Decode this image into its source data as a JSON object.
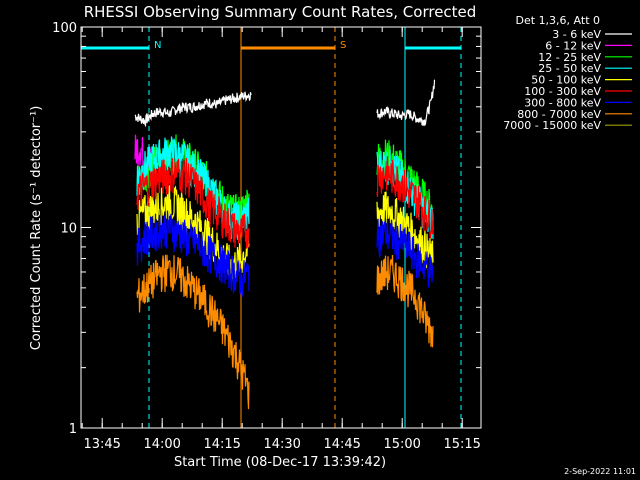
{
  "chart_data": {
    "type": "line",
    "title": "RHESSI Observing Summary Count Rates, Corrected",
    "xlabel": "Start Time (08-Dec-17 13:39:42)",
    "ylabel": "Corrected Count Rate (s⁻¹ detector⁻¹)",
    "yscale": "log",
    "ylim": [
      1,
      100
    ],
    "xlim_minutes": [
      0,
      100
    ],
    "xticks": [
      "13:45",
      "14:00",
      "14:15",
      "14:30",
      "14:45",
      "15:00",
      "15:15"
    ],
    "yticks": [
      "1",
      "10",
      "100"
    ],
    "legend_title": "Det 1,3,6, Att 0",
    "legend_position": "right",
    "timestamp": "2-Sep-2022 11:01",
    "series": [
      {
        "name": "3 - 6 keV",
        "color": "#ffffff",
        "segments": [
          {
            "x": [
              13.5,
              16.0,
              18.0,
              20.0,
              22.0,
              24.0,
              26.0,
              28.0,
              30.0,
              32.0,
              34.0,
              36.0,
              38.0,
              40.0,
              42.5
            ],
            "y": [
              36,
              34,
              37,
              38,
              37,
              39,
              40,
              40,
              41,
              42,
              41,
              43,
              44,
              45,
              46
            ]
          },
          {
            "x": [
              74.0,
              76.0,
              78.0,
              80.0,
              82.0,
              84.0,
              86.0,
              87.5,
              88.5
            ],
            "y": [
              37,
              38,
              37,
              36,
              37,
              35,
              34,
              42,
              55
            ]
          }
        ]
      },
      {
        "name": "6 - 12 keV",
        "color": "#ff00ff",
        "segments": [
          {
            "x": [
              13.5,
              14.5,
              16.0,
              18.0
            ],
            "y": [
              24,
              26,
              22,
              21
            ]
          }
        ]
      },
      {
        "name": "12 - 25 keV",
        "color": "#00ff00",
        "segments": [
          {
            "x": [
              14.0,
              16.0,
              18.0,
              20.0,
              22.0,
              24.0,
              26.0,
              28.0,
              30.0,
              32.0,
              34.0,
              36.0,
              38.0,
              40.0,
              42.0
            ],
            "y": [
              17,
              19,
              21,
              22,
              23,
              24,
              23,
              21,
              19,
              17,
              15,
              13,
              12,
              12,
              14
            ]
          },
          {
            "x": [
              74.0,
              76.0,
              78.0,
              80.0,
              82.0,
              84.0,
              86.0,
              88.0
            ],
            "y": [
              22,
              23,
              22,
              20,
              18,
              16,
              14,
              12
            ]
          }
        ]
      },
      {
        "name": "25 - 50 keV",
        "color": "#00ffff",
        "segments": [
          {
            "x": [
              14.0,
              16.0,
              18.0,
              20.0,
              22.0,
              24.0,
              26.0,
              28.0,
              30.0,
              32.0,
              34.0,
              36.0,
              38.0,
              40.0,
              42.0
            ],
            "y": [
              18,
              20,
              22,
              23,
              24,
              23,
              22,
              20,
              18,
              16,
              14,
              12,
              11,
              11,
              12
            ]
          },
          {
            "x": [
              74.0,
              76.0,
              78.0,
              80.0,
              82.0,
              84.0,
              86.0,
              88.0
            ],
            "y": [
              20,
              21,
              20,
              18,
              16,
              14,
              12,
              11
            ]
          }
        ]
      },
      {
        "name": "50 - 100 keV",
        "color": "#ffff00",
        "segments": [
          {
            "x": [
              14.0,
              16.0,
              18.0,
              20.0,
              22.0,
              24.0,
              26.0,
              28.0,
              30.0,
              32.0,
              34.0,
              36.0,
              38.0,
              40.0,
              42.0
            ],
            "y": [
              11,
              12,
              12.5,
              13,
              13.5,
              13,
              12,
              11,
              10,
              9,
              8,
              7,
              6.5,
              7,
              8
            ]
          },
          {
            "x": [
              74.0,
              76.0,
              78.0,
              80.0,
              82.0,
              84.0,
              86.0,
              88.0
            ],
            "y": [
              12,
              12.5,
              12,
              11,
              10,
              9,
              8,
              7
            ]
          }
        ]
      },
      {
        "name": "100 - 300 keV",
        "color": "#ff0000",
        "segments": [
          {
            "x": [
              14.0,
              16.0,
              18.0,
              20.0,
              22.0,
              24.0,
              26.0,
              28.0,
              30.0,
              32.0,
              34.0,
              36.0,
              38.0,
              40.0,
              42.0
            ],
            "y": [
              15,
              16,
              17,
              18,
              18.5,
              19,
              18.5,
              17,
              15,
              13,
              12,
              11,
              10,
              9.5,
              10
            ]
          },
          {
            "x": [
              74.0,
              76.0,
              78.0,
              80.0,
              82.0,
              84.0,
              86.0,
              88.0
            ],
            "y": [
              18,
              19,
              18,
              17,
              15,
              14,
              12,
              11
            ]
          }
        ]
      },
      {
        "name": "300 - 800 keV",
        "color": "#0000ff",
        "segments": [
          {
            "x": [
              14.0,
              16.0,
              18.0,
              20.0,
              22.0,
              24.0,
              26.0,
              28.0,
              30.0,
              32.0,
              34.0,
              36.0,
              38.0,
              40.0,
              42.0
            ],
            "y": [
              8,
              9,
              9.5,
              10,
              10,
              9.5,
              9,
              8.5,
              8,
              7.5,
              7,
              6.5,
              6,
              5.5,
              6
            ]
          },
          {
            "x": [
              74.0,
              76.0,
              78.0,
              80.0,
              82.0,
              84.0,
              86.0,
              88.0
            ],
            "y": [
              9,
              9.5,
              9,
              8.5,
              8,
              7,
              6.5,
              6
            ]
          }
        ]
      },
      {
        "name": "800 - 7000 keV",
        "color": "#ff8c00",
        "segments": [
          {
            "x": [
              14.0,
              16.0,
              18.0,
              20.0,
              22.0,
              24.0,
              26.0,
              28.0,
              30.0,
              32.0,
              34.0,
              36.0,
              38.0,
              40.0,
              42.0
            ],
            "y": [
              4.5,
              5,
              5.5,
              6,
              6.2,
              6,
              5.5,
              5,
              4.5,
              4,
              3.5,
              3,
              2.5,
              2,
              1.5
            ]
          },
          {
            "x": [
              74.0,
              76.0,
              78.0,
              80.0,
              82.0,
              84.0,
              86.0,
              88.0
            ],
            "y": [
              5.5,
              6,
              6,
              5.5,
              5,
              4.5,
              3.5,
              3
            ]
          }
        ]
      },
      {
        "name": "7000 - 15000 keV",
        "color": "#a0a000",
        "segments": []
      }
    ],
    "markers": [
      {
        "label": "N",
        "color": "#00ffff",
        "bar_start": 0,
        "bar_end": 17,
        "solid_x": 0,
        "dashed_x": 17
      },
      {
        "label": "S",
        "color": "#ff8c00",
        "bar_start": 40,
        "bar_end": 63.5,
        "solid_x": 40,
        "dashed_x": 63.5
      },
      {
        "label": "",
        "color": "#00ffff",
        "bar_start": 81,
        "bar_end": 95,
        "solid_x": 81,
        "dashed_x": 95
      }
    ]
  }
}
